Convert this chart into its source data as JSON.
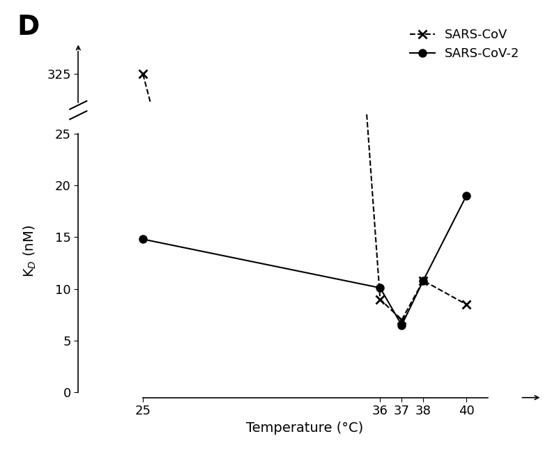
{
  "panel_label": "D",
  "xlabel": "Temperature (°C)",
  "ylabel": "K$_D$ (nM)",
  "x_values": [
    25,
    36,
    37,
    38,
    40
  ],
  "sars_cov_y": [
    325,
    9.0,
    7.0,
    10.8,
    8.5
  ],
  "sars_cov2_y": [
    14.8,
    10.1,
    6.5,
    10.8,
    19.0
  ],
  "x_ticks": [
    25,
    36,
    37,
    38,
    40
  ],
  "y_ticks_lower": [
    0,
    5,
    10,
    15,
    20,
    25
  ],
  "y_ticks_upper": [
    325
  ],
  "lower_ylim": [
    -0.5,
    27
  ],
  "upper_ylim": [
    315,
    335
  ],
  "xlim": [
    22,
    43
  ],
  "background_color": "#ffffff",
  "line_color": "#000000",
  "legend_sars_cov": "SARS-CoV",
  "legend_sars_cov2": "SARS-CoV-2",
  "label_fontsize": 14,
  "tick_fontsize": 13,
  "legend_fontsize": 13
}
